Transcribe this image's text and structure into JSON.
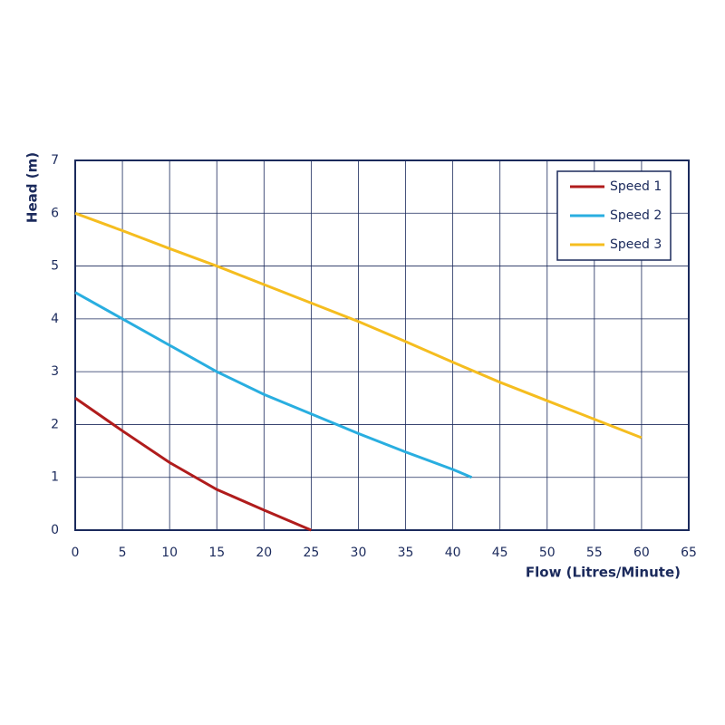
{
  "chart_data": {
    "type": "line",
    "xlabel": "Flow (Litres/Minute)",
    "ylabel": "Head (m)",
    "xlim": [
      0,
      65
    ],
    "xticks": [
      0,
      5,
      10,
      15,
      20,
      25,
      30,
      35,
      40,
      45,
      50,
      55,
      60,
      65
    ],
    "ylim": [
      0,
      7
    ],
    "yticks": [
      0,
      1,
      2,
      3,
      4,
      5,
      6,
      7
    ],
    "grid": true,
    "legend": "upper right",
    "series": [
      {
        "name": "Speed 1",
        "color": "#b01c1c",
        "x": [
          0,
          5,
          10,
          15,
          20,
          25
        ],
        "values": [
          2.5,
          1.88,
          1.28,
          0.77,
          0.38,
          0
        ]
      },
      {
        "name": "Speed 2",
        "color": "#29aee0",
        "x": [
          0,
          5,
          10,
          15,
          20,
          25,
          30,
          35,
          40,
          42
        ],
        "values": [
          4.5,
          4.0,
          3.5,
          3.0,
          2.57,
          2.2,
          1.83,
          1.48,
          1.15,
          1.0
        ]
      },
      {
        "name": "Speed 3",
        "color": "#f5bd1f",
        "x": [
          0,
          5,
          10,
          15,
          20,
          25,
          30,
          35,
          40,
          45,
          50,
          55,
          60
        ],
        "values": [
          6,
          5.67,
          5.33,
          5.0,
          4.65,
          4.3,
          3.95,
          3.57,
          3.18,
          2.8,
          2.45,
          2.1,
          1.75
        ]
      }
    ]
  }
}
